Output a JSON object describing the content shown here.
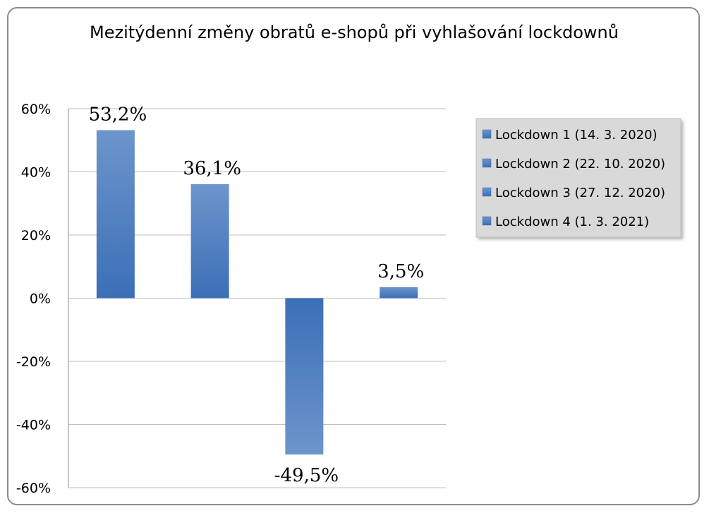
{
  "chart_data": {
    "type": "bar",
    "title": "Mezitýdenní změny obratů e-shopů při vyhlašování lockdownů",
    "xlabel": "",
    "ylabel": "",
    "ylim": [
      -60,
      60
    ],
    "yticks": [
      60,
      40,
      20,
      0,
      -20,
      -40,
      -60
    ],
    "ytick_labels": [
      "60%",
      "40%",
      "20%",
      "0%",
      "-20%",
      "-40%",
      "-60%"
    ],
    "grid": true,
    "legend_position": "right",
    "series": [
      {
        "name": "Lockdown 1 (14. 3. 2020)",
        "values": [
          53.2
        ],
        "label": "53,2%"
      },
      {
        "name": "Lockdown 2 (22. 10. 2020)",
        "values": [
          36.1
        ],
        "label": "36,1%"
      },
      {
        "name": "Lockdown 3 (27. 12. 2020)",
        "values": [
          -49.5
        ],
        "label": "-49,5%"
      },
      {
        "name": "Lockdown 4 (1. 3. 2021)",
        "values": [
          3.5
        ],
        "label": "3,5%"
      }
    ],
    "colors": {
      "bar_dark": "#3b6fb6",
      "bar_light": "#6d95cc"
    }
  }
}
